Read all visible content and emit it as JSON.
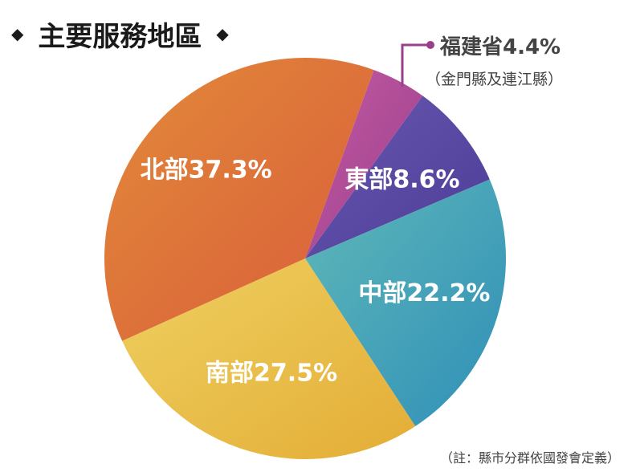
{
  "header": {
    "title": "主要服務地區",
    "left_marker": "◆",
    "right_marker": "◆"
  },
  "chart_data": {
    "type": "pie",
    "title": "主要服務地區",
    "start_angle_deg": 20,
    "slices": [
      {
        "name": "福建省",
        "label": "福建省4.4%",
        "value": 4.4,
        "color_a": "#c45aa4",
        "color_b": "#9a3f8a",
        "sublabel": "（金門縣及連江縣）"
      },
      {
        "name": "東部",
        "label": "東部8.6%",
        "value": 8.6,
        "color_a": "#6a58b0",
        "color_b": "#4b3c96"
      },
      {
        "name": "中部",
        "label": "中部22.2%",
        "value": 22.2,
        "color_a": "#5fb8b8",
        "color_b": "#2f8fb8"
      },
      {
        "name": "南部",
        "label": "南部27.5%",
        "value": 27.5,
        "color_a": "#efd060",
        "color_b": "#e3ad36"
      },
      {
        "name": "北部",
        "label": "北部37.3%",
        "value": 37.3,
        "color_a": "#e28a3a",
        "color_b": "#d95c3a"
      }
    ]
  },
  "callout": {
    "line_color": "#9a3f8a"
  },
  "footnote": "（註：縣市分群依國發會定義）"
}
